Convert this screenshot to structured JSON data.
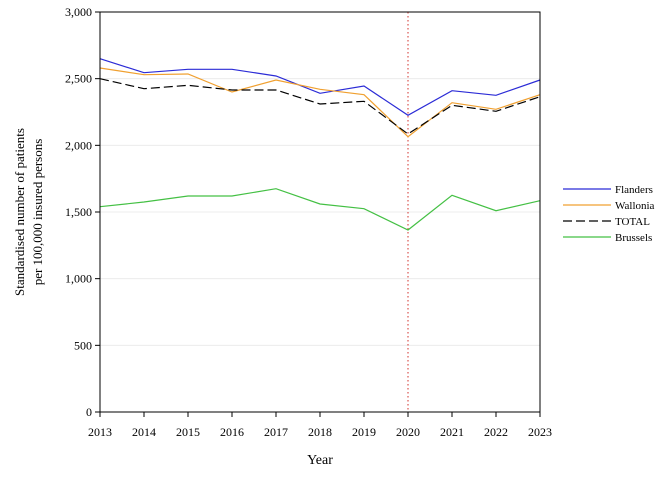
{
  "chart_data": {
    "type": "line",
    "xlabel": "Year",
    "ylabel_lines": [
      "Standardised number of patients",
      "per 100,000 insured persons"
    ],
    "x": [
      "2013",
      "2014",
      "2015",
      "2016",
      "2017",
      "2018",
      "2019",
      "2020",
      "2021",
      "2022",
      "2023"
    ],
    "ylim": [
      0,
      3000
    ],
    "yticks": [
      0,
      500,
      1000,
      1500,
      2000,
      2500,
      3000
    ],
    "ytick_labels": [
      "0",
      "500",
      "1,000",
      "1,500",
      "2,000",
      "2,500",
      "3,000"
    ],
    "grid": "horizontal",
    "legend_position": "right",
    "reference_line": {
      "x": "2020",
      "style": "dotted",
      "color": "#d9534f"
    },
    "series": [
      {
        "name": "Flanders",
        "color": "#2b2bd6",
        "dash": "solid",
        "values": [
          2650,
          2545,
          2570,
          2570,
          2520,
          2390,
          2445,
          2225,
          2410,
          2375,
          2490
        ]
      },
      {
        "name": "Wallonia",
        "color": "#f0a030",
        "dash": "solid",
        "values": [
          2580,
          2530,
          2535,
          2400,
          2490,
          2420,
          2380,
          2065,
          2320,
          2270,
          2380
        ]
      },
      {
        "name": "TOTAL",
        "color": "#000000",
        "dash": "dashed",
        "values": [
          2500,
          2425,
          2450,
          2415,
          2415,
          2310,
          2330,
          2085,
          2300,
          2255,
          2365
        ]
      },
      {
        "name": "Brussels",
        "color": "#44c044",
        "dash": "solid",
        "values": [
          1540,
          1575,
          1620,
          1620,
          1675,
          1560,
          1525,
          1365,
          1625,
          1510,
          1585
        ]
      }
    ]
  }
}
